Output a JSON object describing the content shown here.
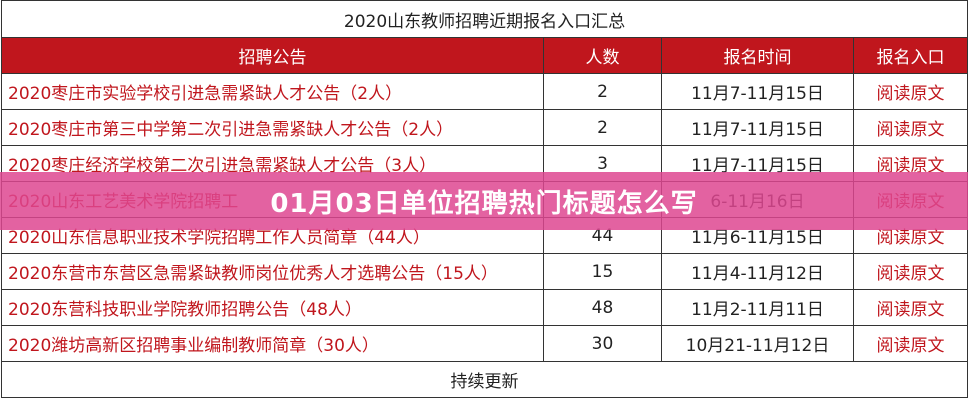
{
  "table": {
    "title": "2020山东教师招聘近期报名入口汇总",
    "headers": [
      "招聘公告",
      "人数",
      "报名时间",
      "报名入口"
    ],
    "rows": [
      {
        "title": "2020枣庄市实验学校引进急需紧缺人才公告（2人）",
        "count": "2",
        "time": "11月7-11月15日",
        "link": "阅读原文"
      },
      {
        "title": "2020枣庄市第三中学第二次引进急需紧缺人才公告（2人）",
        "count": "2",
        "time": "11月7-11月15日",
        "link": "阅读原文"
      },
      {
        "title": "2020枣庄经济学校第二次引进急需紧缺人才公告（3人）",
        "count": "3",
        "time": "11月7-11月15日",
        "link": "阅读原文"
      },
      {
        "title": "2020山东工艺美术学院招聘工",
        "count": "",
        "time": "6-11月16日",
        "link": "阅读原文"
      },
      {
        "title": "2020山东信息职业技术学院招聘工作人员简章（44人）",
        "count": "44",
        "time": "11月6-11月15日",
        "link": "阅读原文"
      },
      {
        "title": "2020东营市东营区急需紧缺教师岗位优秀人才选聘公告（15人）",
        "count": "15",
        "time": "11月4-11月12日",
        "link": "阅读原文"
      },
      {
        "title": "2020东营科技职业学院教师招聘公告（48人）",
        "count": "48",
        "time": "11月2-11月11日",
        "link": "阅读原文"
      },
      {
        "title": "2020潍坊高新区招聘事业编制教师简章（30人）",
        "count": "30",
        "time": "10月21-11月12日",
        "link": "阅读原文"
      }
    ],
    "footer": "持续更新"
  },
  "overlay": {
    "text": "01月03日单位招聘热门标题怎么写"
  }
}
